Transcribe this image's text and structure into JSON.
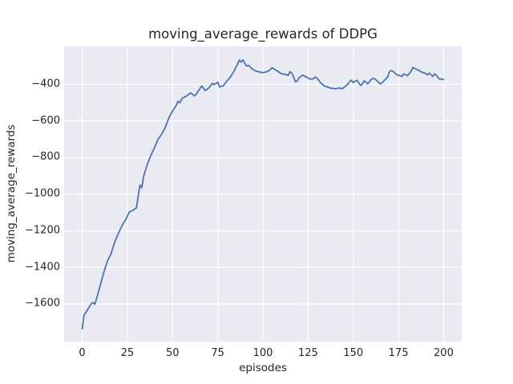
{
  "figure": {
    "background_color": "#ffffff",
    "text_color": "#262626"
  },
  "chart_data": {
    "type": "line",
    "title": "moving_average_rewards of DDPG",
    "xlabel": "episodes",
    "ylabel": "moving_average_rewards",
    "style": "seaborn-darkgrid",
    "axes_background_color": "#eaeaf2",
    "grid_color": "#ffffff",
    "grid": true,
    "legend": "none",
    "line_color": "#4c72b0",
    "line_width": 1.8,
    "xlim": [
      -10,
      210
    ],
    "ylim": [
      -1809,
      -193
    ],
    "x_ticks": [
      0,
      25,
      50,
      75,
      100,
      125,
      150,
      175,
      200
    ],
    "y_ticks": [
      -400,
      -600,
      -800,
      -1000,
      -1200,
      -1400,
      -1600
    ],
    "series": [
      {
        "name": "moving_average_rewards",
        "x": [
          0,
          1,
          2,
          3,
          4,
          5,
          6,
          7,
          8,
          10,
          12,
          14,
          16,
          18,
          20,
          22,
          24,
          25,
          26,
          28,
          30,
          31,
          32,
          33,
          34,
          36,
          38,
          40,
          42,
          44,
          46,
          48,
          50,
          52,
          53,
          54,
          55,
          56,
          58,
          60,
          62,
          63,
          64,
          66,
          67,
          68,
          70,
          72,
          73,
          74,
          75,
          76,
          78,
          80,
          82,
          84,
          85,
          86,
          87,
          88,
          89,
          90,
          91,
          92,
          94,
          96,
          98,
          100,
          102,
          104,
          105,
          106,
          108,
          110,
          112,
          114,
          115,
          116,
          117,
          118,
          119,
          120,
          122,
          124,
          126,
          128,
          129,
          130,
          132,
          134,
          136,
          138,
          140,
          142,
          144,
          146,
          147,
          148,
          149,
          150,
          151,
          152,
          153,
          154,
          155,
          156,
          158,
          160,
          161,
          162,
          164,
          165,
          166,
          168,
          169,
          170,
          171,
          172,
          174,
          176,
          177,
          178,
          180,
          182,
          183,
          184,
          186,
          188,
          190,
          191,
          192,
          194,
          195,
          196,
          197,
          198,
          199,
          200
        ],
        "y": [
          -1736,
          -1660,
          -1648,
          -1630,
          -1615,
          -1598,
          -1592,
          -1602,
          -1570,
          -1498,
          -1425,
          -1365,
          -1325,
          -1260,
          -1215,
          -1172,
          -1140,
          -1120,
          -1098,
          -1088,
          -1075,
          -1010,
          -950,
          -965,
          -902,
          -838,
          -788,
          -745,
          -700,
          -672,
          -634,
          -582,
          -545,
          -515,
          -492,
          -500,
          -482,
          -472,
          -462,
          -446,
          -462,
          -455,
          -440,
          -409,
          -418,
          -434,
          -420,
          -394,
          -401,
          -394,
          -388,
          -413,
          -408,
          -382,
          -360,
          -328,
          -308,
          -288,
          -266,
          -278,
          -265,
          -286,
          -300,
          -295,
          -315,
          -326,
          -332,
          -336,
          -331,
          -321,
          -309,
          -315,
          -326,
          -341,
          -344,
          -350,
          -330,
          -338,
          -360,
          -386,
          -381,
          -364,
          -349,
          -359,
          -371,
          -369,
          -359,
          -366,
          -392,
          -408,
          -415,
          -421,
          -424,
          -420,
          -423,
          -407,
          -398,
          -384,
          -377,
          -390,
          -383,
          -377,
          -390,
          -405,
          -398,
          -380,
          -396,
          -372,
          -367,
          -370,
          -388,
          -397,
          -390,
          -370,
          -360,
          -330,
          -324,
          -328,
          -347,
          -352,
          -356,
          -342,
          -352,
          -328,
          -307,
          -313,
          -322,
          -333,
          -340,
          -348,
          -338,
          -356,
          -342,
          -350,
          -363,
          -372,
          -369,
          -374
        ]
      }
    ]
  }
}
